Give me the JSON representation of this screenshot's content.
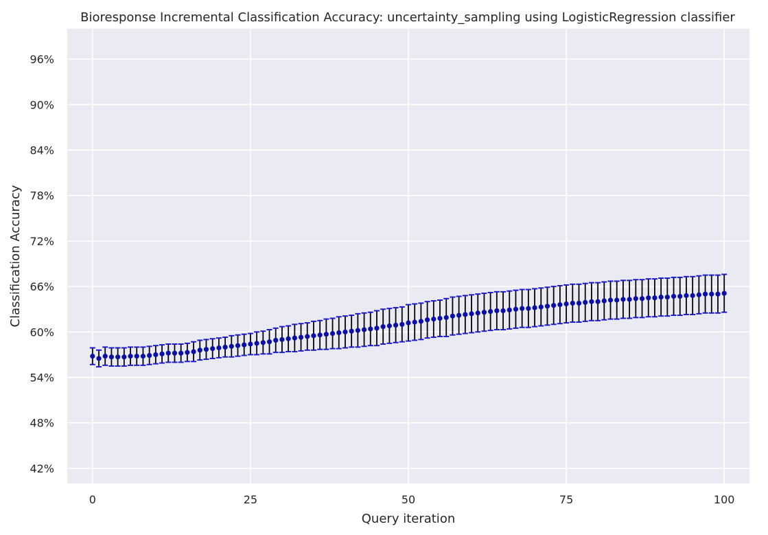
{
  "chart_data": {
    "type": "scatter",
    "title": "Bioresponse Incremental Classification Accuracy: uncertainty_sampling using LogisticRegression classifier",
    "xlabel": "Query iteration",
    "ylabel": "Classification Accuracy",
    "xlim": [
      -4,
      104
    ],
    "ylim": [
      0.4,
      1.0
    ],
    "xticks": [
      0,
      25,
      50,
      75,
      100
    ],
    "yticks": [
      0.42,
      0.48,
      0.54,
      0.6,
      0.66,
      0.72,
      0.78,
      0.84,
      0.9,
      0.96
    ],
    "ytick_labels": [
      "42%",
      "48%",
      "54%",
      "60%",
      "66%",
      "72%",
      "78%",
      "84%",
      "90%",
      "96%"
    ],
    "grid": true,
    "background_color": "#eaeaf2",
    "grid_color": "#ffffff",
    "marker_color": "#0b0fa6",
    "cap_color": "#1a1acd",
    "errorbar_color": "#000000",
    "series": [
      {
        "x": [
          0,
          1,
          2,
          3,
          4,
          5,
          6,
          7,
          8,
          9,
          10,
          11,
          12,
          13,
          14,
          15,
          16,
          17,
          18,
          19,
          20,
          21,
          22,
          23,
          24,
          25,
          26,
          27,
          28,
          29,
          30,
          31,
          32,
          33,
          34,
          35,
          36,
          37,
          38,
          39,
          40,
          41,
          42,
          43,
          44,
          45,
          46,
          47,
          48,
          49,
          50,
          51,
          52,
          53,
          54,
          55,
          56,
          57,
          58,
          59,
          60,
          61,
          62,
          63,
          64,
          65,
          66,
          67,
          68,
          69,
          70,
          71,
          72,
          73,
          74,
          75,
          76,
          77,
          78,
          79,
          80,
          81,
          82,
          83,
          84,
          85,
          86,
          87,
          88,
          89,
          90,
          91,
          92,
          93,
          94,
          95,
          96,
          97,
          98,
          99,
          100
        ],
        "y": [
          0.568,
          0.565,
          0.568,
          0.567,
          0.567,
          0.567,
          0.568,
          0.568,
          0.568,
          0.569,
          0.57,
          0.571,
          0.572,
          0.572,
          0.572,
          0.573,
          0.574,
          0.576,
          0.577,
          0.578,
          0.579,
          0.58,
          0.581,
          0.582,
          0.583,
          0.584,
          0.585,
          0.586,
          0.587,
          0.589,
          0.59,
          0.591,
          0.592,
          0.593,
          0.594,
          0.595,
          0.596,
          0.597,
          0.598,
          0.599,
          0.6,
          0.601,
          0.602,
          0.603,
          0.604,
          0.605,
          0.607,
          0.608,
          0.609,
          0.61,
          0.612,
          0.613,
          0.614,
          0.616,
          0.617,
          0.618,
          0.619,
          0.621,
          0.622,
          0.623,
          0.624,
          0.625,
          0.626,
          0.627,
          0.628,
          0.628,
          0.629,
          0.63,
          0.631,
          0.631,
          0.632,
          0.633,
          0.634,
          0.635,
          0.636,
          0.637,
          0.638,
          0.638,
          0.639,
          0.64,
          0.64,
          0.641,
          0.642,
          0.642,
          0.643,
          0.643,
          0.644,
          0.644,
          0.645,
          0.645,
          0.646,
          0.646,
          0.647,
          0.647,
          0.648,
          0.648,
          0.649,
          0.65,
          0.65,
          0.65,
          0.651
        ],
        "err": [
          0.011,
          0.011,
          0.012,
          0.012,
          0.012,
          0.012,
          0.012,
          0.012,
          0.012,
          0.012,
          0.012,
          0.012,
          0.012,
          0.012,
          0.012,
          0.012,
          0.013,
          0.013,
          0.013,
          0.013,
          0.013,
          0.013,
          0.014,
          0.014,
          0.014,
          0.014,
          0.015,
          0.015,
          0.016,
          0.016,
          0.017,
          0.017,
          0.018,
          0.018,
          0.018,
          0.019,
          0.019,
          0.02,
          0.02,
          0.021,
          0.021,
          0.021,
          0.022,
          0.022,
          0.022,
          0.023,
          0.023,
          0.023,
          0.023,
          0.023,
          0.024,
          0.024,
          0.024,
          0.024,
          0.024,
          0.024,
          0.025,
          0.025,
          0.025,
          0.025,
          0.025,
          0.025,
          0.025,
          0.025,
          0.025,
          0.025,
          0.025,
          0.025,
          0.025,
          0.025,
          0.025,
          0.025,
          0.025,
          0.025,
          0.025,
          0.025,
          0.025,
          0.025,
          0.025,
          0.025,
          0.025,
          0.025,
          0.025,
          0.025,
          0.025,
          0.025,
          0.025,
          0.025,
          0.025,
          0.025,
          0.025,
          0.025,
          0.025,
          0.025,
          0.025,
          0.025,
          0.025,
          0.025,
          0.025,
          0.025,
          0.025
        ]
      }
    ]
  }
}
